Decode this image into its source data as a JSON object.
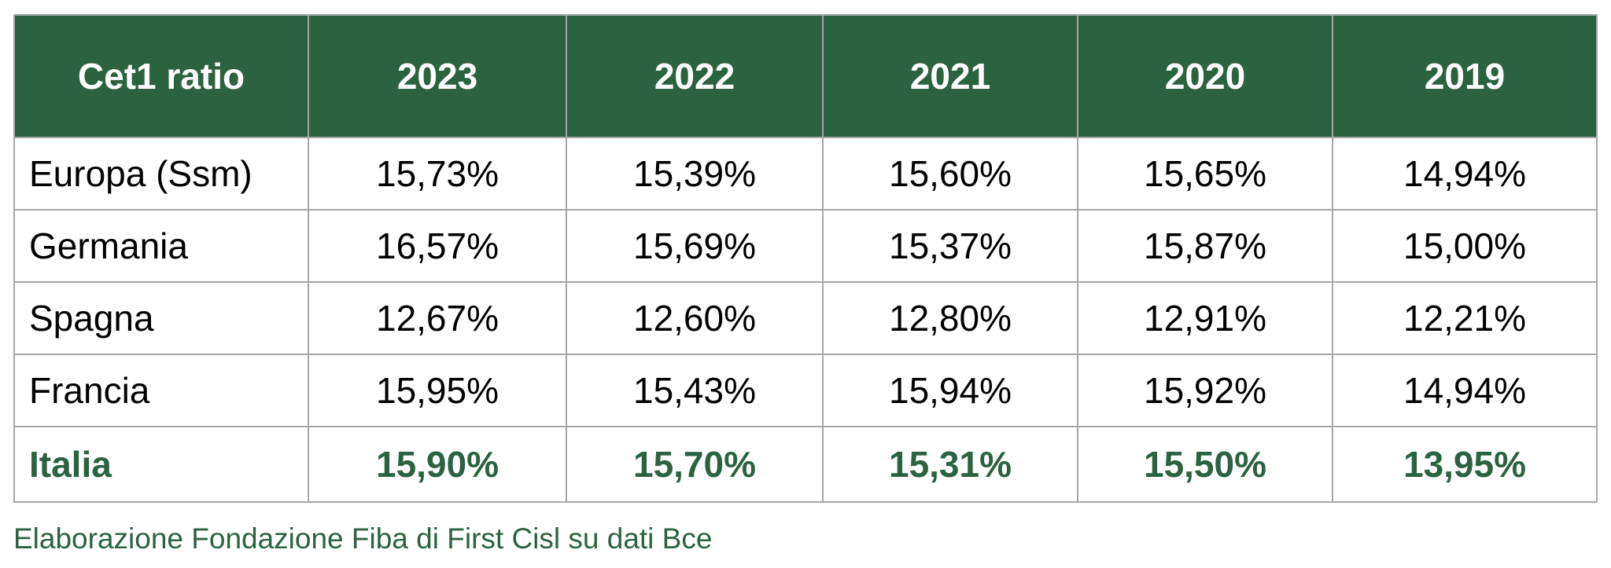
{
  "chart_data": {
    "type": "table",
    "corner_label": "Cet1 ratio",
    "columns": [
      "2023",
      "2022",
      "2021",
      "2020",
      "2019"
    ],
    "rows": [
      {
        "label": "Europa (Ssm)",
        "values": [
          "15,73%",
          "15,39%",
          "15,60%",
          "15,65%",
          "14,94%"
        ]
      },
      {
        "label": "Germania",
        "values": [
          "16,57%",
          "15,69%",
          "15,37%",
          "15,87%",
          "15,00%"
        ]
      },
      {
        "label": "Spagna",
        "values": [
          "12,67%",
          "12,60%",
          "12,80%",
          "12,91%",
          "12,21%"
        ]
      },
      {
        "label": "Francia",
        "values": [
          "15,95%",
          "15,43%",
          "15,94%",
          "15,92%",
          "14,94%"
        ]
      },
      {
        "label": "Italia",
        "values": [
          "15,90%",
          "15,70%",
          "15,31%",
          "15,50%",
          "13,95%"
        ],
        "highlight": true
      }
    ],
    "source_note": "Elaborazione Fondazione Fiba di First Cisl su dati Bce"
  },
  "colors": {
    "header_bg": "#2b6240",
    "header_text": "#ffffff",
    "highlight_text": "#2b6240",
    "grid": "#a7a7a7"
  }
}
